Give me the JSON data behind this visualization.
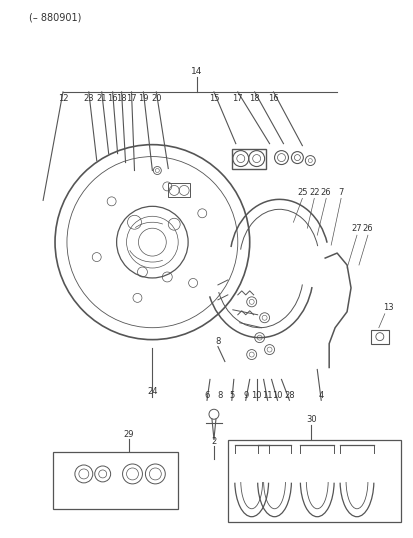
{
  "bg_color": "#ffffff",
  "line_color": "#555555",
  "text_color": "#333333",
  "fig_width": 4.14,
  "fig_height": 5.38,
  "dpi": 100
}
